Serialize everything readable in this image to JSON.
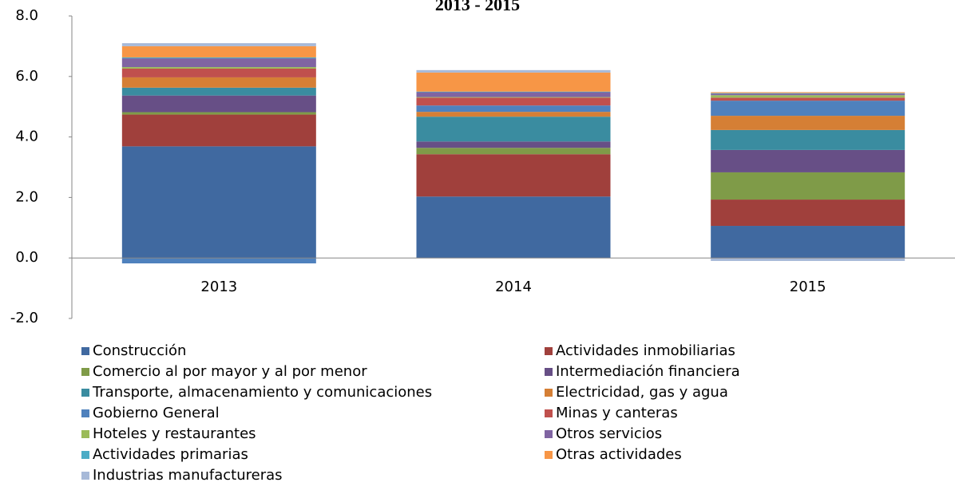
{
  "chart_data": {
    "type": "stacked_bar",
    "title": "2013 - 2015",
    "categories": [
      "2013",
      "2014",
      "2015"
    ],
    "ylim": [
      -2,
      8
    ],
    "yticks": [
      {
        "value": -2,
        "label": "-2.0"
      },
      {
        "value": 0,
        "label": "0.0"
      },
      {
        "value": 2,
        "label": "2.0"
      },
      {
        "value": 4,
        "label": "4.0"
      },
      {
        "value": 6,
        "label": "6.0"
      },
      {
        "value": 8,
        "label": "8.0"
      }
    ],
    "series": [
      {
        "name": "Construcción",
        "color": "#4069a0",
        "values": [
          3.69,
          2.03,
          1.06
        ]
      },
      {
        "name": "Actividades inmobiliarias",
        "color": "#a0403c",
        "values": [
          1.05,
          1.4,
          0.87
        ]
      },
      {
        "name": "Comercio al por mayor y al por menor",
        "color": "#7f9b48",
        "values": [
          0.08,
          0.21,
          0.9
        ]
      },
      {
        "name": "Intermediación financiera",
        "color": "#674f86",
        "values": [
          0.55,
          0.21,
          0.74
        ]
      },
      {
        "name": "Transporte, almacenamiento y comunicaciones",
        "color": "#3a8ca0",
        "values": [
          0.26,
          0.82,
          0.66
        ]
      },
      {
        "name": "Electricidad, gas y agua",
        "color": "#d57f35",
        "values": [
          0.34,
          0.16,
          0.47
        ]
      },
      {
        "name": "Gobierno General",
        "color": "#4f81bd",
        "values": [
          -0.18,
          0.21,
          0.5
        ]
      },
      {
        "name": "Minas y canteras",
        "color": "#c0504d",
        "values": [
          0.29,
          0.26,
          0.1
        ]
      },
      {
        "name": "Hoteles y restaurantes",
        "color": "#9bbb59",
        "values": [
          0.05,
          0.02,
          0.08
        ]
      },
      {
        "name": "Otros servicios",
        "color": "#8064a2",
        "values": [
          0.29,
          0.16,
          0.05
        ]
      },
      {
        "name": "Actividades primarias",
        "color": "#4bacc6",
        "values": [
          0.03,
          0.02,
          0.02
        ]
      },
      {
        "name": "Otras actividades",
        "color": "#f79646",
        "values": [
          0.37,
          0.63,
          0.03
        ]
      },
      {
        "name": "Industrias manufactureras",
        "color": "#a7b9d8",
        "values": [
          0.1,
          0.08,
          -0.1
        ]
      }
    ]
  }
}
